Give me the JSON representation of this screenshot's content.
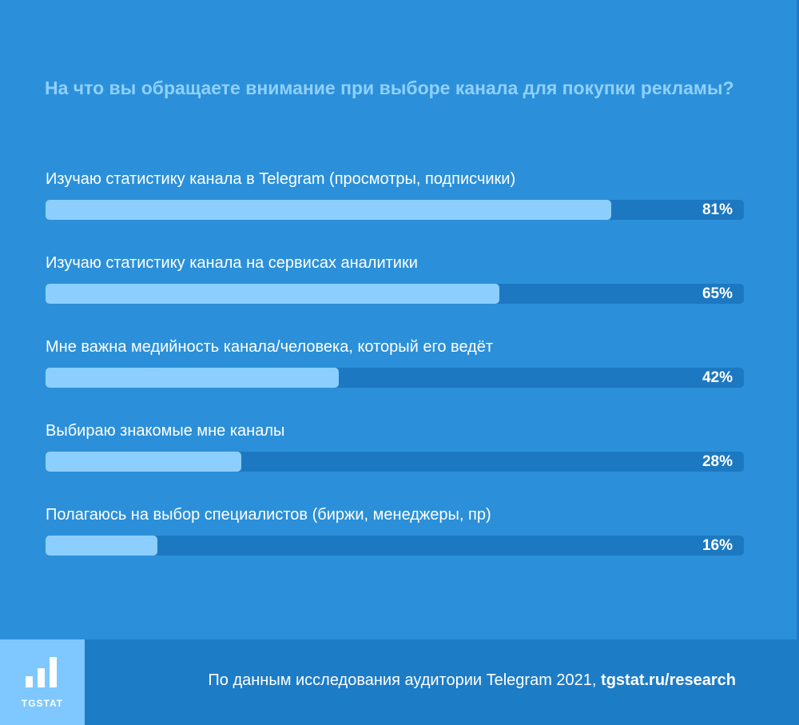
{
  "chart_data": {
    "type": "bar",
    "orientation": "horizontal",
    "title": "На что вы обращаете внимание при выборе канала для покупки рекламы?",
    "categories": [
      "Изучаю статистику канала в Telegram (просмотры, подписчики)",
      "Изучаю статистику канала на сервисах аналитики",
      "Мне важна медийность канала/человека, который его ведёт",
      "Выбираю знакомые мне каналы",
      "Полагаюсь на выбор специалистов (биржи, менеджеры, пр)"
    ],
    "values": [
      81,
      65,
      42,
      28,
      16
    ],
    "value_labels": [
      "81%",
      "65%",
      "42%",
      "28%",
      "16%"
    ],
    "xlim": [
      0,
      100
    ],
    "grid": false,
    "legend": "none"
  },
  "footer": {
    "logo_text": "TGSTAT",
    "logo_icon": "bar-chart-icon",
    "source_text": "По данным исследования аудитории Telegram 2021, ",
    "source_link": "tgstat.ru/research"
  },
  "colors": {
    "background": "#2B90D9",
    "title": "#8FD0FF",
    "bar_fill": "#8CCFFF",
    "bar_track": "#1C78C1",
    "footer": "#1D7CC6",
    "logo_box": "#7EC8FF"
  }
}
